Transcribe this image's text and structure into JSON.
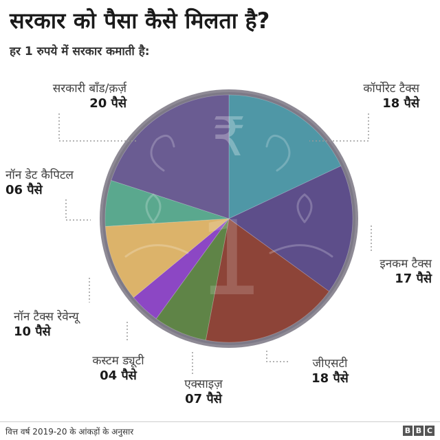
{
  "title": "सरकार को पैसा कैसे मिलता है?",
  "subtitle": "हर 1 रुपये में सरकार कमाती है:",
  "chart_data": {
    "type": "pie",
    "unit": "पैसे",
    "slices": [
      {
        "label": "कॉर्पोरेट टैक्स",
        "value": 18,
        "value_text": "18 पैसे",
        "color": "#4f97a6"
      },
      {
        "label": "इनकम टैक्स",
        "value": 17,
        "value_text": "17 पैसे",
        "color": "#5d4e8a"
      },
      {
        "label": "जीएसटी",
        "value": 18,
        "value_text": "18 पैसे",
        "color": "#8d4438"
      },
      {
        "label": "एक्साइज़",
        "value": 7,
        "value_text": "07 पैसे",
        "color": "#5f8447"
      },
      {
        "label": "कस्टम ड्यूटी",
        "value": 4,
        "value_text": "04 पैसे",
        "color": "#8c47c4"
      },
      {
        "label": "नॉन टैक्स रेवेन्यू",
        "value": 10,
        "value_text": "10 पैसे",
        "color": "#dcb36a"
      },
      {
        "label": "नॉन डेट कैपिटल",
        "value": 6,
        "value_text": "06 पैसे",
        "color": "#5aa88e"
      },
      {
        "label": "सरकारी बॉंड/क़र्ज़",
        "value": 20,
        "value_text": "20 पैसे",
        "color": "#6a5c92"
      }
    ]
  },
  "coin": {
    "symbol": "₹",
    "numeral": "1"
  },
  "footer": "वित्त वर्ष 2019-20 के आंकड़ों के अनुसार",
  "brand": [
    "B",
    "B",
    "C"
  ],
  "colors": {
    "coin_rim": "#8e8a95",
    "leader": "#9a9a9a"
  }
}
